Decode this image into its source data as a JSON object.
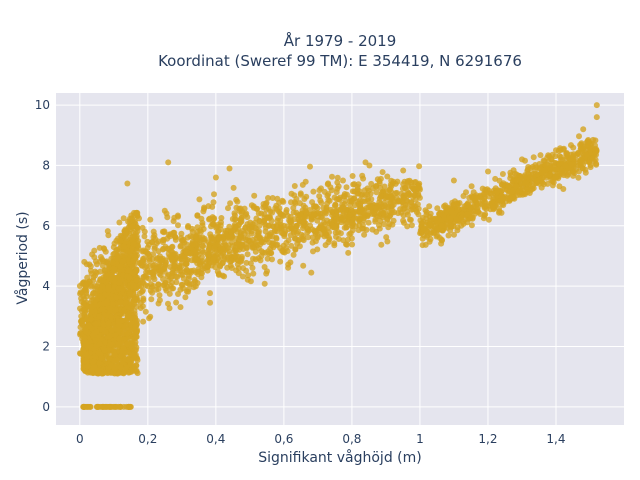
{
  "chart_data": {
    "type": "scatter",
    "title_line1": "År 1979 - 2019",
    "title_line2": "Koordinat (Sweref 99 TM): E 354419, N 6291676",
    "xlabel": "Signifikant våghöjd (m)",
    "ylabel": "Vågperiod (s)",
    "xlim": [
      -0.07,
      1.6
    ],
    "ylim": [
      -0.6,
      10.4
    ],
    "x_ticks": [
      0,
      0.2,
      0.4,
      0.6,
      0.8,
      1,
      1.2,
      1.4
    ],
    "x_tick_labels": [
      "0",
      "0,2",
      "0,4",
      "0,6",
      "0,8",
      "1",
      "1,2",
      "1,4"
    ],
    "y_ticks": [
      0,
      2,
      4,
      6,
      8,
      10
    ],
    "y_tick_labels": [
      "0",
      "2",
      "4",
      "6",
      "8",
      "10"
    ],
    "grid": true,
    "plot_background": "#e5e5ee",
    "marker_color": "#d4a420",
    "marker_opacity": 0.8,
    "data_description": "dense cloud: period rises roughly linearly with wave height; many points near x 0.02-0.15 with period 0 to 5",
    "sample_points": [
      [
        0.01,
        0
      ],
      [
        0.03,
        0
      ],
      [
        0.06,
        0
      ],
      [
        0.09,
        0
      ],
      [
        0.12,
        0
      ],
      [
        0.15,
        0
      ],
      [
        0.02,
        1.5
      ],
      [
        0.05,
        2.5
      ],
      [
        0.08,
        3.5
      ],
      [
        0.1,
        4.5
      ],
      [
        0.12,
        5.5
      ],
      [
        0.14,
        7.4
      ],
      [
        0.2,
        4
      ],
      [
        0.25,
        6.5
      ],
      [
        0.26,
        8.1
      ],
      [
        0.3,
        5
      ],
      [
        0.4,
        7.6
      ],
      [
        0.44,
        7.9
      ],
      [
        0.5,
        5.5
      ],
      [
        0.6,
        6
      ],
      [
        0.7,
        6.3
      ],
      [
        0.8,
        6.8
      ],
      [
        0.84,
        8.1
      ],
      [
        0.9,
        7
      ],
      [
        1.0,
        7.2
      ],
      [
        1.1,
        7.5
      ],
      [
        1.2,
        7.8
      ],
      [
        1.3,
        8.2
      ],
      [
        1.4,
        8.5
      ],
      [
        1.48,
        9.2
      ],
      [
        1.52,
        9.6
      ],
      [
        1.52,
        10
      ]
    ]
  }
}
